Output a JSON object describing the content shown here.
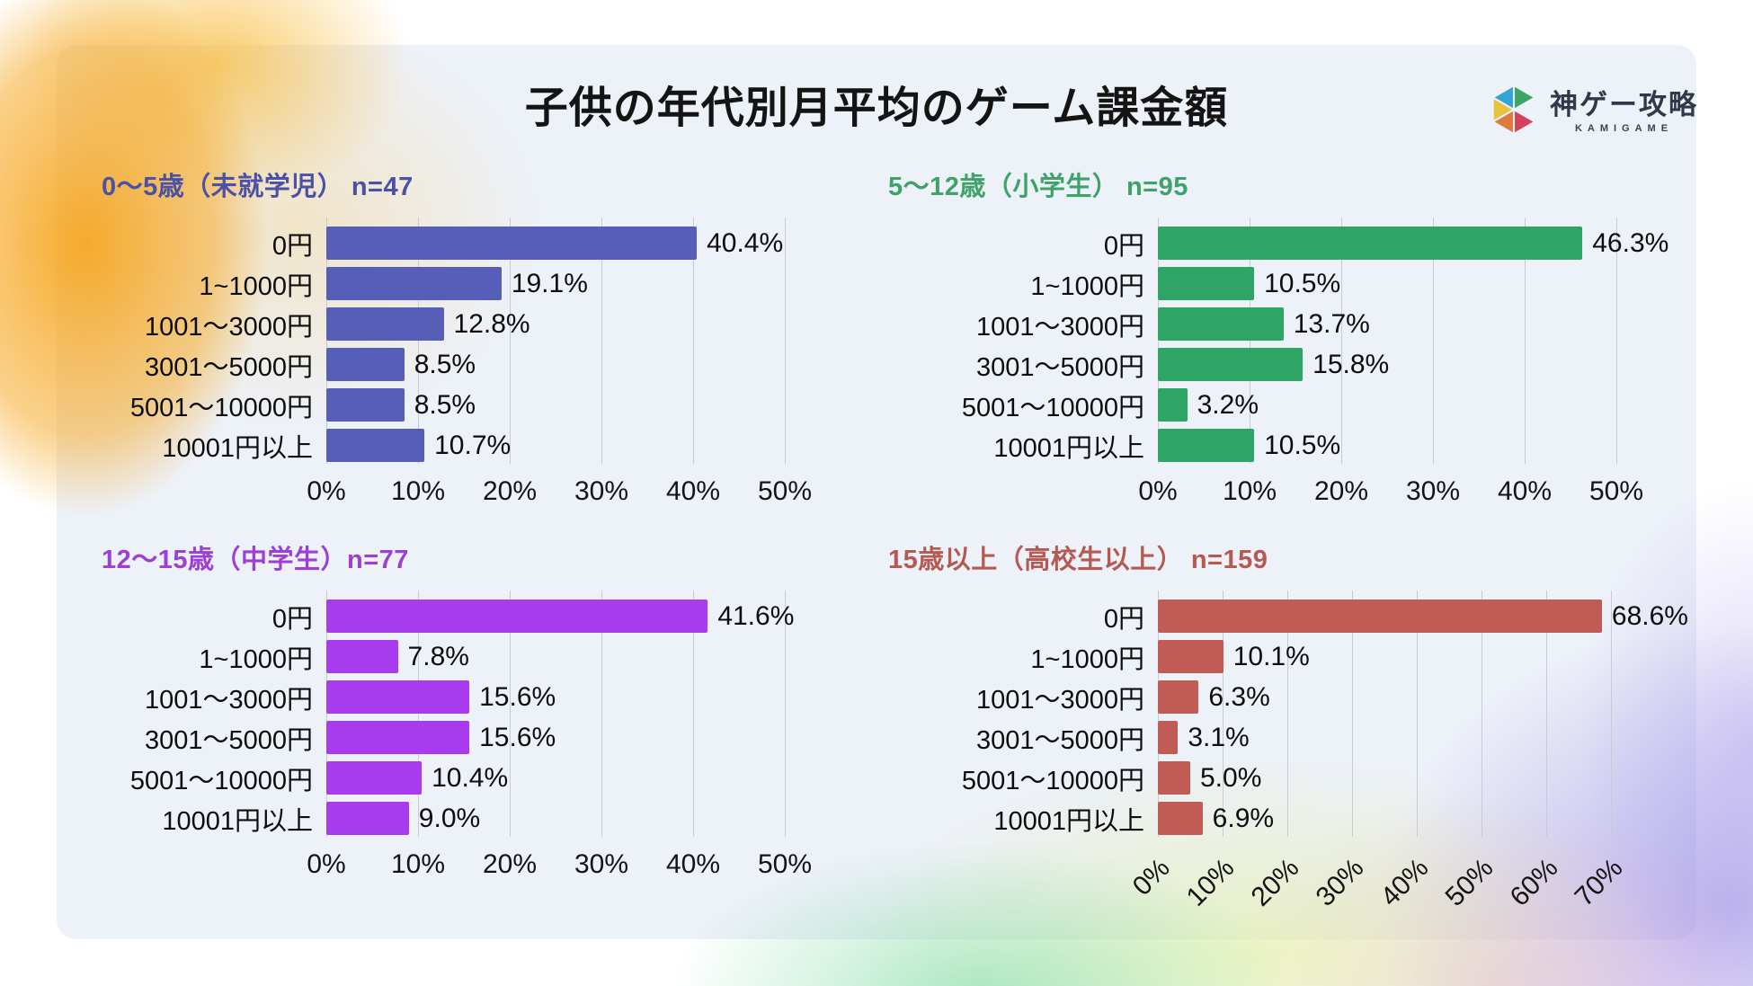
{
  "page": {
    "title": "子供の年代別月平均のゲーム課金額"
  },
  "logo": {
    "name": "神ゲー攻略",
    "subtext": "KAMIGAME",
    "icon": "kamigame-triangles-icon",
    "icon_colors": {
      "blue": "#35a3d6",
      "green": "#3aa864",
      "yellow": "#e8c23c",
      "orange": "#dd7a3c",
      "crimson": "#d2425f"
    }
  },
  "chart_data": [
    {
      "type": "bar",
      "orientation": "horizontal",
      "title": "0〜5歳（未就学児） n=47",
      "n": 47,
      "title_color": "#4b51a6",
      "bar_color": "#575eb7",
      "categories": [
        "0円",
        "1~1000円",
        "1001〜3000円",
        "3001〜5000円",
        "5001〜10000円",
        "10001円以上"
      ],
      "values": [
        40.4,
        19.1,
        12.8,
        8.5,
        8.5,
        10.7
      ],
      "value_suffix": "%",
      "axis_ticks": [
        "0%",
        "10%",
        "20%",
        "30%",
        "40%",
        "50%"
      ],
      "xlim": [
        0,
        50
      ],
      "grid": true,
      "legend": false,
      "tick_rotation": 0
    },
    {
      "type": "bar",
      "orientation": "horizontal",
      "title": "5〜12歳（小学生） n=95",
      "n": 95,
      "title_color": "#3fa269",
      "bar_color": "#2ea465",
      "categories": [
        "0円",
        "1~1000円",
        "1001〜3000円",
        "3001〜5000円",
        "5001〜10000円",
        "10001円以上"
      ],
      "values": [
        46.3,
        10.5,
        13.7,
        15.8,
        3.2,
        10.5
      ],
      "value_suffix": "%",
      "axis_ticks": [
        "0%",
        "10%",
        "20%",
        "30%",
        "40%",
        "50%"
      ],
      "xlim": [
        0,
        50
      ],
      "grid": true,
      "legend": false,
      "tick_rotation": 0
    },
    {
      "type": "bar",
      "orientation": "horizontal",
      "title": "12〜15歳（中学生）n=77",
      "n": 77,
      "title_color": "#9d3fd6",
      "bar_color": "#a93bef",
      "categories": [
        "0円",
        "1~1000円",
        "1001〜3000円",
        "3001〜5000円",
        "5001〜10000円",
        "10001円以上"
      ],
      "values": [
        41.6,
        7.8,
        15.6,
        15.6,
        10.4,
        9.0
      ],
      "value_suffix": "%",
      "axis_ticks": [
        "0%",
        "10%",
        "20%",
        "30%",
        "40%",
        "50%"
      ],
      "xlim": [
        0,
        50
      ],
      "grid": true,
      "legend": false,
      "tick_rotation": 0
    },
    {
      "type": "bar",
      "orientation": "horizontal",
      "title": "15歳以上（高校生以上） n=159",
      "n": 159,
      "title_color": "#b75953",
      "bar_color": "#c15b56",
      "categories": [
        "0円",
        "1~1000円",
        "1001〜3000円",
        "3001〜5000円",
        "5001〜10000円",
        "10001円以上"
      ],
      "values": [
        68.6,
        10.1,
        6.3,
        3.1,
        5.0,
        6.9
      ],
      "value_suffix": "%",
      "axis_ticks": [
        "0%",
        "10%",
        "20%",
        "30%",
        "40%",
        "50%",
        "60%",
        "70%"
      ],
      "xlim": [
        0,
        70
      ],
      "grid": true,
      "legend": false,
      "tick_rotation": 45
    }
  ]
}
